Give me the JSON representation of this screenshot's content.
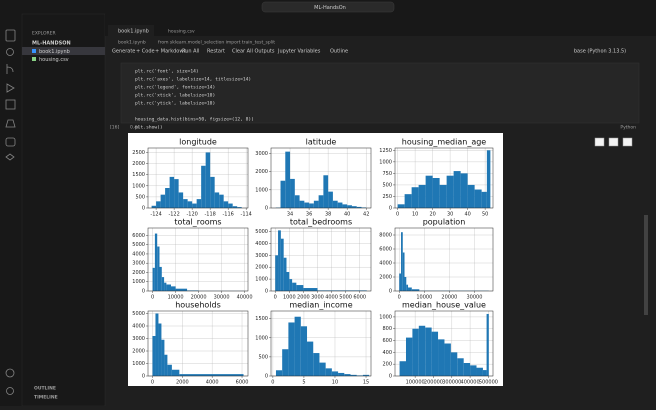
{
  "window": {
    "search": "ML-HandsOn"
  },
  "sidebar": {
    "title": "EXPLORER",
    "folder": "ML-HANDSON",
    "files": [
      "book1.ipynb",
      "housing.csv"
    ],
    "sections": [
      "OUTLINE",
      "TIMELINE"
    ]
  },
  "tabs": [
    "book1.ipynb",
    "housing.csv"
  ],
  "breadcrumb": [
    "book1.ipynb",
    "from sklearn.model_selection import train_test_split"
  ],
  "toolbar": [
    "Generate",
    "+ Code",
    "+ Markdown",
    "Run All",
    "Restart",
    "Clear All Outputs",
    "Jupyter Variables",
    "Outline"
  ],
  "kernel": "base (Python 3.13.5)",
  "cell": {
    "lines": [
      "plt.rc('font', size=14)",
      "plt.rc('axes', labelsize=14, titlesize=14)",
      "plt.rc('legend', fontsize=14)",
      "plt.rc('xtick', labelsize=10)",
      "plt.rc('ytick', labelsize=10)",
      "housing_data.hist(bins=50, figsize=(12, 8))",
      "plt.show()"
    ],
    "exec_count": "[16]",
    "time": "0.4s",
    "language": "Python"
  },
  "figure": {
    "color": "#1f77b4",
    "grid": true,
    "plots": [
      {
        "title": "longitude",
        "xlim": [
          -124.9,
          -113.8
        ],
        "xticks": [
          -124,
          -122,
          -120,
          -118,
          -116,
          -114
        ],
        "ylim": [
          0,
          2700
        ],
        "yticks": [
          0,
          500,
          1000,
          1500,
          2000,
          2500
        ],
        "bins": [
          -124.5,
          -124,
          -123.5,
          -123,
          -122.5,
          -122,
          -121.5,
          -121,
          -120.5,
          -120,
          -119.5,
          -119,
          -118.5,
          -118,
          -117.5,
          -117,
          -116.5,
          -116,
          -115.5,
          -115,
          -114.5
        ],
        "counts": [
          100,
          300,
          600,
          900,
          1400,
          1300,
          700,
          400,
          300,
          200,
          400,
          1900,
          2500,
          1400,
          700,
          600,
          300,
          200,
          80,
          40
        ]
      },
      {
        "title": "latitude",
        "xlim": [
          32,
          42.5
        ],
        "xticks": [
          34,
          36,
          38,
          40,
          42
        ],
        "ylim": [
          0,
          3300
        ],
        "yticks": [
          0,
          1000,
          2000,
          3000
        ],
        "bins": [
          32.5,
          33,
          33.5,
          34,
          34.5,
          35,
          35.5,
          36,
          36.5,
          37,
          37.5,
          38,
          38.5,
          39,
          39.5,
          40,
          40.5,
          41,
          41.5,
          42
        ],
        "counts": [
          20,
          1500,
          3100,
          1600,
          700,
          400,
          300,
          250,
          400,
          700,
          1800,
          900,
          400,
          300,
          200,
          150,
          100,
          60,
          30
        ]
      },
      {
        "title": "housing_median_age",
        "xlim": [
          -1.5,
          54.5
        ],
        "xticks": [
          0,
          10,
          20,
          30,
          40,
          50
        ],
        "ylim": [
          0,
          1300
        ],
        "yticks": [
          0,
          250,
          500,
          750,
          1000,
          1250
        ],
        "bins": [
          0,
          4,
          8,
          12,
          16,
          20,
          24,
          28,
          32,
          36,
          40,
          44,
          48,
          51,
          53
        ],
        "counts": [
          80,
          300,
          450,
          500,
          700,
          650,
          500,
          700,
          800,
          750,
          500,
          400,
          350,
          1250
        ]
      },
      {
        "title": "total_rooms",
        "xlim": [
          -2000,
          41500
        ],
        "xticks": [
          0,
          10000,
          20000,
          30000,
          40000
        ],
        "ylim": [
          0,
          6800
        ],
        "yticks": [
          0,
          1000,
          2000,
          3000,
          4000,
          5000,
          6000
        ],
        "bins": [
          0,
          1000,
          2000,
          3000,
          4000,
          5000,
          6000,
          8000,
          10000,
          15000,
          20000,
          40000
        ],
        "counts": [
          2500,
          6200,
          4800,
          2600,
          1500,
          900,
          700,
          500,
          250,
          60,
          10
        ]
      },
      {
        "title": "total_bedrooms",
        "xlim": [
          -300,
          6800
        ],
        "xticks": [
          0,
          1000,
          2000,
          3000,
          4000,
          5000,
          6000
        ],
        "ylim": [
          0,
          5300
        ],
        "yticks": [
          0,
          1000,
          2000,
          3000,
          4000,
          5000
        ],
        "bins": [
          0,
          200,
          400,
          600,
          800,
          1000,
          1200,
          1500,
          2000,
          3000,
          6500
        ],
        "counts": [
          3000,
          5100,
          4400,
          2800,
          1600,
          1000,
          700,
          500,
          250,
          50
        ]
      },
      {
        "title": "population",
        "xlim": [
          -1700,
          37400
        ],
        "xticks": [
          0,
          10000,
          20000,
          30000
        ],
        "ylim": [
          0,
          9000
        ],
        "yticks": [
          0,
          2000,
          4000,
          6000,
          8000
        ],
        "bins": [
          0,
          700,
          1400,
          2100,
          2800,
          3500,
          5000,
          8000,
          35700
        ],
        "counts": [
          2500,
          8400,
          5500,
          2000,
          900,
          500,
          250,
          40
        ]
      },
      {
        "title": "households",
        "xlim": [
          -300,
          6400
        ],
        "xticks": [
          0,
          2000,
          4000,
          6000
        ],
        "ylim": [
          0,
          5200
        ],
        "yticks": [
          0,
          1000,
          2000,
          3000,
          4000,
          5000
        ],
        "bins": [
          0,
          200,
          400,
          600,
          800,
          1000,
          1300,
          1800,
          6100
        ],
        "counts": [
          3200,
          5000,
          4200,
          2900,
          1700,
          900,
          500,
          150
        ]
      },
      {
        "title": "median_income",
        "xlim": [
          -0.3,
          15.8
        ],
        "xticks": [
          0,
          5,
          10,
          15
        ],
        "ylim": [
          0,
          1700
        ],
        "yticks": [
          0,
          500,
          1000,
          1500
        ],
        "bins": [
          0.5,
          1.5,
          2.5,
          3.5,
          4.5,
          5.5,
          6.5,
          7.5,
          8.5,
          9.5,
          10.5,
          11.5,
          12.5,
          13.5,
          14.5,
          15.5
        ],
        "counts": [
          150,
          700,
          1400,
          1550,
          1300,
          900,
          600,
          350,
          200,
          120,
          80,
          50,
          30,
          15,
          30
        ]
      },
      {
        "title": "median_house_value",
        "xlim": [
          -10000,
          525000
        ],
        "xticks": [
          100000,
          200000,
          300000,
          400000,
          500000
        ],
        "ylim": [
          0,
          1100
        ],
        "yticks": [
          0,
          200,
          400,
          600,
          800,
          1000
        ],
        "bins": [
          15000,
          50000,
          85000,
          120000,
          155000,
          190000,
          225000,
          260000,
          295000,
          330000,
          365000,
          400000,
          435000,
          470000,
          490000,
          502000
        ],
        "counts": [
          250,
          650,
          800,
          850,
          820,
          750,
          620,
          550,
          400,
          300,
          220,
          180,
          140,
          100,
          1050
        ]
      }
    ]
  }
}
